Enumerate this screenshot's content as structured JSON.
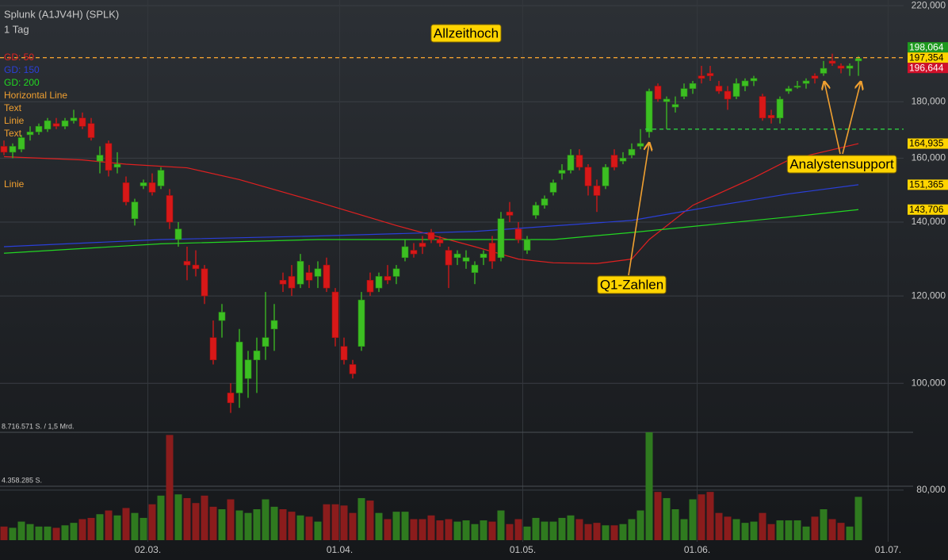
{
  "chart_data": {
    "type": "candlestick",
    "title": "Splunk (A1JV4H) (SPLK)",
    "subtitle": "1 Tag",
    "log_scale": true,
    "grid": true,
    "ylim": [
      71000,
      222600
    ],
    "yticks": [
      {
        "value": 80000,
        "label": "80,000"
      },
      {
        "value": 100000,
        "label": "100,000"
      },
      {
        "value": 120000,
        "label": "120,000"
      },
      {
        "value": 140000,
        "label": "140,000"
      },
      {
        "value": 160000,
        "label": "160,000"
      },
      {
        "value": 180000,
        "label": "180,000"
      },
      {
        "value": 220000,
        "label": "220,000"
      }
    ],
    "xticks": [
      {
        "value": 16.5,
        "label": "02.03."
      },
      {
        "value": 38.5,
        "label": "01.04."
      },
      {
        "value": 59.5,
        "label": "01.05."
      },
      {
        "value": 79.5,
        "label": "01.06."
      },
      {
        "value": 101.4,
        "label": "01.07."
      }
    ],
    "up_color": "#3cbf22",
    "down_color": "#d81818",
    "open": [
      164000,
      162000,
      163000,
      168000,
      169000,
      170000,
      172000,
      171000,
      173000,
      174000,
      172000,
      159000,
      165000,
      157000,
      152000,
      141000,
      151000,
      152000,
      151000,
      148000,
      135000,
      129000,
      128000,
      127000,
      110000,
      114000,
      98000,
      98000,
      101000,
      105000,
      108000,
      112000,
      124000,
      125000,
      123000,
      126000,
      125000,
      128000,
      121000,
      108000,
      104000,
      108000,
      124000,
      122000,
      125000,
      125000,
      130000,
      132000,
      134000,
      137000,
      135000,
      132000,
      130000,
      129000,
      126000,
      130000,
      134000,
      130000,
      143000,
      138000,
      132000,
      142000,
      145000,
      149000,
      155000,
      156000,
      161000,
      157000,
      151000,
      151000,
      161000,
      159000,
      161000,
      164000,
      169000,
      186000,
      180000,
      178000,
      182000,
      185000,
      190000,
      191000,
      186000,
      184000,
      182000,
      186000,
      188000,
      182000,
      175000,
      174000,
      184000,
      186000,
      187000,
      190000,
      191000,
      196000,
      194000,
      193000,
      196000
    ],
    "high": [
      166000,
      165000,
      168000,
      171000,
      172000,
      174000,
      174000,
      174000,
      177000,
      176000,
      174000,
      164000,
      166000,
      162000,
      154000,
      147000,
      153000,
      155000,
      157000,
      150000,
      140000,
      133000,
      132000,
      128000,
      114000,
      118000,
      100000,
      112000,
      107000,
      110000,
      121000,
      118000,
      126000,
      128000,
      131000,
      128000,
      129000,
      130000,
      122000,
      110000,
      105000,
      121000,
      126000,
      126000,
      128000,
      128000,
      135000,
      134000,
      136000,
      138000,
      136000,
      133000,
      132000,
      132000,
      129000,
      132000,
      136000,
      143000,
      146000,
      140000,
      136000,
      146000,
      148000,
      153000,
      158000,
      163000,
      163000,
      158000,
      153000,
      158000,
      163000,
      162000,
      165000,
      170000,
      185000,
      187000,
      182000,
      182000,
      187000,
      188000,
      194000,
      194000,
      188000,
      186000,
      189000,
      189000,
      190000,
      183000,
      177000,
      182000,
      186000,
      188000,
      189000,
      191000,
      196000,
      199000,
      195000,
      195000,
      198000
    ],
    "low": [
      161000,
      160000,
      162000,
      166000,
      168000,
      169000,
      170000,
      170000,
      172000,
      170000,
      166000,
      155000,
      154000,
      155000,
      145000,
      139000,
      150000,
      148000,
      150000,
      138000,
      133000,
      124000,
      125000,
      118000,
      104000,
      110000,
      94000,
      95000,
      97000,
      98000,
      105000,
      107000,
      121000,
      120000,
      122000,
      122000,
      122000,
      121000,
      108000,
      104000,
      101000,
      107000,
      120000,
      121000,
      123000,
      123000,
      129000,
      130000,
      131000,
      134000,
      133000,
      122000,
      128000,
      127000,
      123000,
      128000,
      127000,
      129000,
      140000,
      134000,
      131000,
      141000,
      144000,
      148000,
      153000,
      155000,
      156000,
      148000,
      143000,
      150000,
      156000,
      158000,
      160000,
      163000,
      167000,
      180000,
      170000,
      176000,
      181000,
      183000,
      187000,
      188000,
      183000,
      177000,
      181000,
      184000,
      186000,
      173000,
      172000,
      172000,
      183000,
      185000,
      185000,
      187000,
      190000,
      194000,
      191000,
      190000,
      190000
    ],
    "close": [
      162000,
      164000,
      167000,
      169000,
      171000,
      173000,
      171000,
      173000,
      174000,
      171000,
      167000,
      161000,
      156000,
      158000,
      146000,
      146000,
      152000,
      149000,
      156000,
      140000,
      138000,
      128000,
      127000,
      120000,
      105000,
      116000,
      96000,
      109000,
      105000,
      107000,
      110000,
      114000,
      123000,
      122000,
      129000,
      124000,
      127000,
      122000,
      110000,
      105000,
      102000,
      119000,
      121000,
      125000,
      124000,
      127000,
      133000,
      131000,
      133000,
      135000,
      134000,
      128000,
      131000,
      130000,
      128000,
      131000,
      129000,
      141000,
      142000,
      135000,
      135000,
      145000,
      147000,
      152000,
      156000,
      161000,
      157000,
      151000,
      148000,
      157000,
      157000,
      160000,
      163000,
      165000,
      184000,
      181000,
      181000,
      179000,
      185000,
      187000,
      189000,
      190000,
      184000,
      181000,
      187000,
      188000,
      189000,
      174000,
      174000,
      181000,
      185000,
      186000,
      188000,
      189000,
      193000,
      195000,
      193000,
      194000,
      197000
    ],
    "volume": [
      1100000,
      1000000,
      1500000,
      1300000,
      1100000,
      1100000,
      1000000,
      1200000,
      1400000,
      1700000,
      1800000,
      2100000,
      2400000,
      2000000,
      2600000,
      2200000,
      1800000,
      2900000,
      3600000,
      8500000,
      3700000,
      3400000,
      3000000,
      3600000,
      2700000,
      2500000,
      3300000,
      2400000,
      2200000,
      2500000,
      3300000,
      2700000,
      2500000,
      2300000,
      2000000,
      1900000,
      1500000,
      2900000,
      2900000,
      2800000,
      2200000,
      3400000,
      3200000,
      2200000,
      1700000,
      2300000,
      2300000,
      1700000,
      1700000,
      2000000,
      1600000,
      1700000,
      1500000,
      1600000,
      1300000,
      1600000,
      1500000,
      2400000,
      1300000,
      1700000,
      1100000,
      1800000,
      1500000,
      1500000,
      1800000,
      2000000,
      1700000,
      1300000,
      1400000,
      1200000,
      1200000,
      1300000,
      1700000,
      2400000,
      8716571,
      3900000,
      3400000,
      2500000,
      1700000,
      3300000,
      3700000,
      3900000,
      2200000,
      1900000,
      1700000,
      1400000,
      1500000,
      2200000,
      1300000,
      1600000,
      1600000,
      1600000,
      1100000,
      1900000,
      2500000,
      1700000,
      1400000,
      1100000,
      3500000
    ],
    "volume_up_color": "#2f7a1f",
    "volume_down_color": "#8b1c1c",
    "y2lim": [
      0,
      8716571
    ],
    "y2ticks": [
      {
        "value": 4358285,
        "label": "4.358.285 S."
      },
      {
        "value": 8716571,
        "label": "8.716.571 S. / 1,5 Mrd."
      }
    ],
    "series": [
      {
        "name": "GD: 50",
        "color": "#e02020",
        "x": [
          0,
          9,
          14,
          21,
          27,
          36,
          45,
          54,
          59,
          63,
          68,
          72,
          74,
          79,
          86,
          90,
          98
        ],
        "values": [
          160500,
          159400,
          158000,
          156800,
          153000,
          146000,
          139000,
          133000,
          129600,
          128600,
          128400,
          129600,
          135000,
          145000,
          153600,
          159400,
          164935
        ]
      },
      {
        "name": "GD: 150",
        "color": "#2a3fd8",
        "x": [
          0,
          18,
          36,
          54,
          72,
          82,
          90,
          98
        ],
        "values": [
          133000,
          135000,
          136000,
          137300,
          140500,
          145000,
          148500,
          151365
        ]
      },
      {
        "name": "GD: 200",
        "color": "#22d622",
        "x": [
          0,
          18,
          36,
          54,
          63,
          72,
          82,
          90,
          98
        ],
        "values": [
          131200,
          133800,
          135000,
          135000,
          135000,
          137000,
          139500,
          141500,
          143706
        ]
      }
    ],
    "drawings": [
      "Horizontal Line",
      "Text",
      "Linie",
      "Text",
      "Linie"
    ],
    "drawing_color": "#f0a030",
    "horizontal_lines": [
      {
        "value": 197354,
        "color": "#f0a030",
        "from": 0
      },
      {
        "value": 170000,
        "color": "#2ecc40",
        "from": 74
      }
    ],
    "price_labels": [
      {
        "value": 198064,
        "label": "198,064",
        "color": "#1e9a1e",
        "text_color": "#ffffff"
      },
      {
        "value": 197354,
        "label": "197,354",
        "color": "#ffd400",
        "text_color": "#000000"
      },
      {
        "value": 196644,
        "label": "196,644",
        "color": "#d0102a",
        "text_color": "#ffffff"
      },
      {
        "value": 164935,
        "label": "164,935",
        "color": "#ffd400",
        "text_color": "#000000"
      },
      {
        "value": 151365,
        "label": "151,365",
        "color": "#ffd400",
        "text_color": "#000000"
      },
      {
        "value": 143706,
        "label": "143,706",
        "color": "#ffd400",
        "text_color": "#000000"
      }
    ],
    "annotations": [
      "Allzeithoch",
      "Q1-Zahlen",
      "Analystensupport"
    ]
  }
}
